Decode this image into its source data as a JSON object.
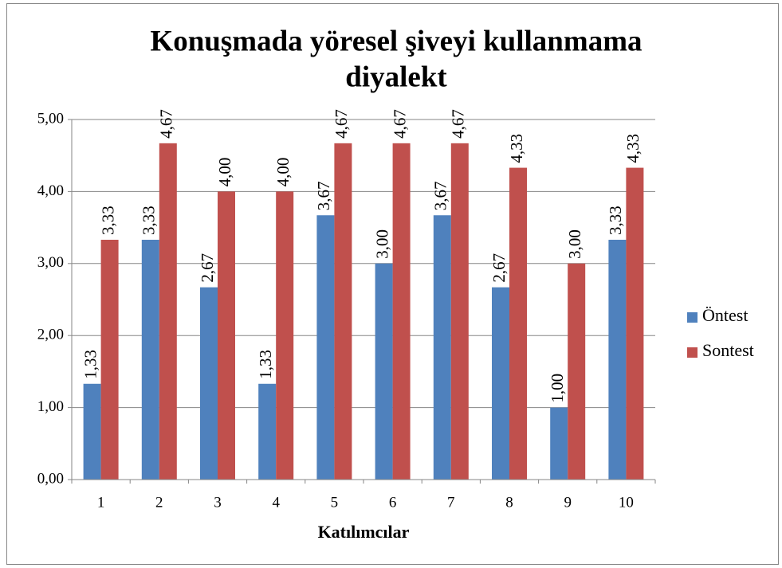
{
  "chart_data": {
    "type": "bar",
    "title": "Konuşmada yöresel şiveyi kullanmama diyalekt",
    "x_label": "Katılımcılar",
    "categories": [
      "1",
      "2",
      "3",
      "4",
      "5",
      "6",
      "7",
      "8",
      "9",
      "10"
    ],
    "series": [
      {
        "name": "Öntest",
        "color": "#4f81bd",
        "values": [
          1.33,
          3.33,
          2.67,
          1.33,
          3.67,
          3.0,
          3.67,
          2.67,
          1.0,
          3.33
        ],
        "value_labels": [
          "1,33",
          "3,33",
          "2,67",
          "1,33",
          "3,67",
          "3,00",
          "3,67",
          "2,67",
          "1,00",
          "3,33"
        ]
      },
      {
        "name": "Sontest",
        "color": "#c0504d",
        "values": [
          3.33,
          4.67,
          4.0,
          4.0,
          4.67,
          4.67,
          4.67,
          4.33,
          3.0,
          4.33
        ],
        "value_labels": [
          "3,33",
          "4,67",
          "4,00",
          "4,00",
          "4,67",
          "4,67",
          "4,67",
          "4,33",
          "3,00",
          "4,33"
        ]
      }
    ],
    "ylim": [
      0,
      5
    ],
    "yticks": [
      {
        "value": 0,
        "label": "0,00"
      },
      {
        "value": 1,
        "label": "1,00"
      },
      {
        "value": 2,
        "label": "2,00"
      },
      {
        "value": 3,
        "label": "3,00"
      },
      {
        "value": 4,
        "label": "4,00"
      },
      {
        "value": 5,
        "label": "5,00"
      }
    ],
    "grid": true,
    "legend": "right"
  }
}
